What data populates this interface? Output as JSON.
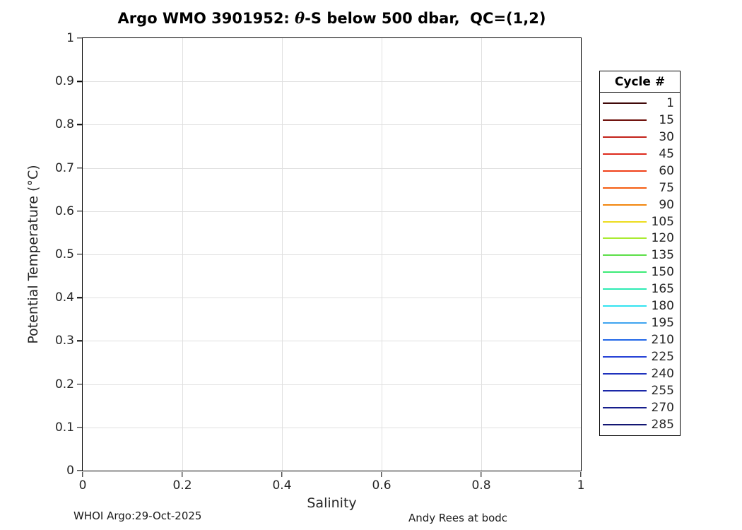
{
  "figure": {
    "title": {
      "prefix": "Argo WMO 3901952: ",
      "theta": "θ",
      "suffix": "-S below 500 dbar,  QC=(1,2)"
    },
    "footer_left": "WHOI Argo:29-Oct-2025",
    "footer_right": "Andy Rees at bodc"
  },
  "chart_data": {
    "type": "line",
    "title": "Argo WMO 3901952: θ-S below 500 dbar,  QC=(1,2)",
    "xlabel": "Salinity",
    "ylabel": "Potential Temperature (°C)",
    "xlim": [
      0,
      1
    ],
    "ylim": [
      0,
      1
    ],
    "x_ticks": [
      0,
      0.2,
      0.4,
      0.6,
      0.8,
      1
    ],
    "x_tick_labels": [
      "0",
      "0.2",
      "0.4",
      "0.6",
      "0.8",
      "1"
    ],
    "y_ticks": [
      0,
      0.1,
      0.2,
      0.3,
      0.4,
      0.5,
      0.6,
      0.7,
      0.8,
      0.9,
      1
    ],
    "y_tick_labels": [
      "0",
      "0.1",
      "0.2",
      "0.3",
      "0.4",
      "0.5",
      "0.6",
      "0.7",
      "0.8",
      "0.9",
      "1"
    ],
    "grid": true,
    "grid_color": "#e0e0e0",
    "legend_title": "Cycle #",
    "legend_position": "outside-right",
    "series": []
  },
  "legend": {
    "title": "Cycle #",
    "entries": [
      {
        "label": "1",
        "color": "#400808"
      },
      {
        "label": "15",
        "color": "#6E0F0A"
      },
      {
        "label": "30",
        "color": "#C2221A"
      },
      {
        "label": "45",
        "color": "#DE2A1C"
      },
      {
        "label": "60",
        "color": "#F04018"
      },
      {
        "label": "75",
        "color": "#F55E12"
      },
      {
        "label": "90",
        "color": "#F2860F"
      },
      {
        "label": "105",
        "color": "#EDDC1F"
      },
      {
        "label": "120",
        "color": "#AAEB32"
      },
      {
        "label": "135",
        "color": "#5CDE48"
      },
      {
        "label": "150",
        "color": "#3CEB77"
      },
      {
        "label": "165",
        "color": "#2EEBB4"
      },
      {
        "label": "180",
        "color": "#33E3F0"
      },
      {
        "label": "195",
        "color": "#3FA4F0"
      },
      {
        "label": "210",
        "color": "#2268E8"
      },
      {
        "label": "225",
        "color": "#2541D6"
      },
      {
        "label": "240",
        "color": "#1F32BD"
      },
      {
        "label": "255",
        "color": "#1B28A8"
      },
      {
        "label": "270",
        "color": "#161E8C"
      },
      {
        "label": "285",
        "color": "#121672"
      }
    ]
  }
}
